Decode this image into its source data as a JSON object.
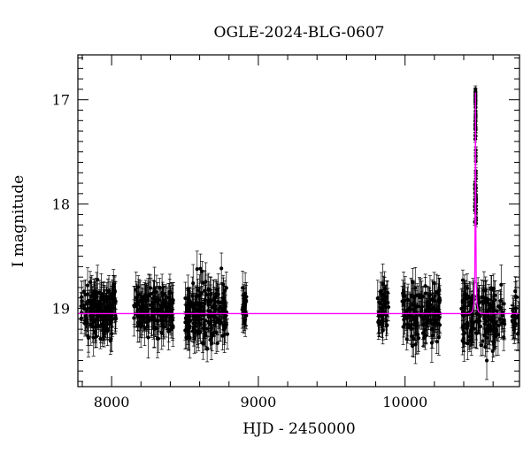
{
  "chart_data": {
    "type": "scatter",
    "title": "OGLE-2024-BLG-0607",
    "xlabel": "HJD - 2450000",
    "ylabel": "I magnitude",
    "xlim": [
      7770,
      10780
    ],
    "ylim": [
      19.75,
      16.57
    ],
    "y_inverted": true,
    "x_ticks": [
      8000,
      9000,
      10000
    ],
    "y_ticks": [
      17,
      18,
      19
    ],
    "grid": false,
    "point_color": "#000000",
    "model_color": "#ff00ff",
    "baseline_mag": 19.05,
    "seasons": [
      {
        "start": 7790,
        "end": 8030,
        "center": 19.02,
        "spread": 0.22,
        "n": 170
      },
      {
        "start": 8150,
        "end": 8420,
        "center": 19.02,
        "spread": 0.22,
        "n": 170
      },
      {
        "start": 8500,
        "end": 8790,
        "center": 19.05,
        "spread": 0.26,
        "n": 190
      },
      {
        "start": 8890,
        "end": 8920,
        "center": 19.0,
        "spread": 0.15,
        "n": 25
      },
      {
        "start": 9810,
        "end": 9890,
        "center": 19.0,
        "spread": 0.2,
        "n": 45
      },
      {
        "start": 9980,
        "end": 10240,
        "center": 19.05,
        "spread": 0.24,
        "n": 140
      },
      {
        "start": 10380,
        "end": 10680,
        "center": 19.08,
        "spread": 0.27,
        "n": 170
      },
      {
        "start": 10730,
        "end": 10780,
        "center": 19.1,
        "spread": 0.2,
        "n": 25
      }
    ],
    "peak": {
      "t0": 10480,
      "tE": 3.2,
      "peak_mag": 16.93
    },
    "series": [
      {
        "type": "line",
        "x": [
          7770,
          10440,
          10460,
          10470,
          10475,
          10478,
          10480,
          10482,
          10485,
          10490,
          10500,
          10520,
          10780
        ],
        "y": [
          19.05,
          19.05,
          19.03,
          18.95,
          18.7,
          18.0,
          16.93,
          18.0,
          18.7,
          18.95,
          19.03,
          19.05,
          19.05
        ]
      }
    ]
  }
}
